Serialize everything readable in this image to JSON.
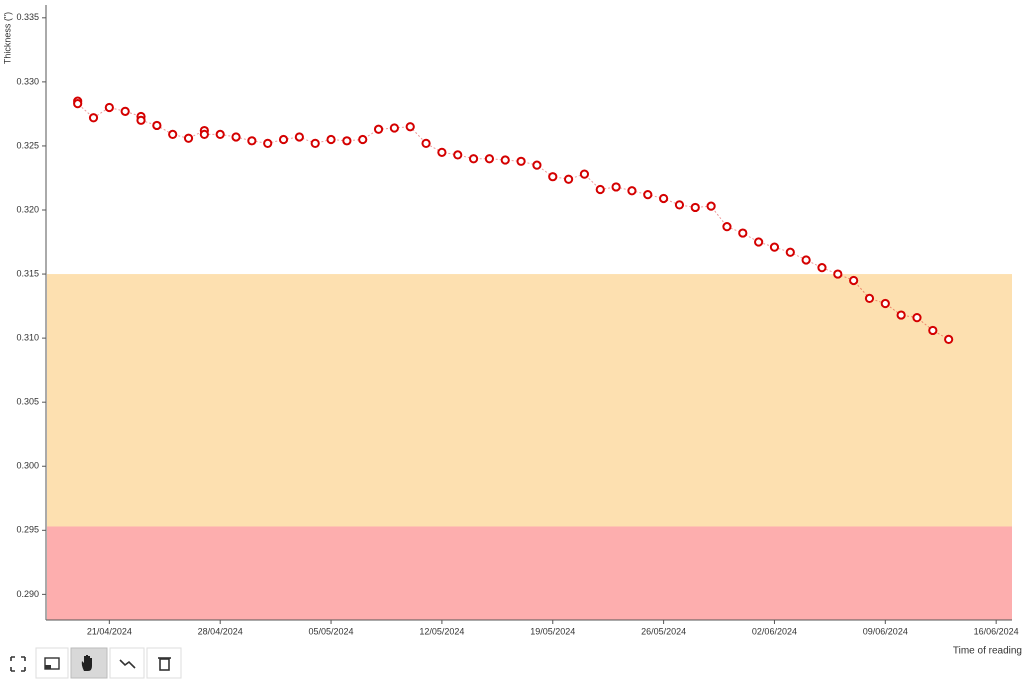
{
  "chart_data": {
    "type": "line",
    "y_label": "Thickness (\")",
    "x_label": "Time of reading",
    "color": "#d40000",
    "x": [
      "2024-04-19",
      "2024-04-19",
      "2024-04-20",
      "2024-04-21",
      "2024-04-22",
      "2024-04-23",
      "2024-04-23",
      "2024-04-24",
      "2024-04-25",
      "2024-04-26",
      "2024-04-27",
      "2024-04-27",
      "2024-04-28",
      "2024-04-29",
      "2024-04-30",
      "2024-05-01",
      "2024-05-02",
      "2024-05-03",
      "2024-05-04",
      "2024-05-05",
      "2024-05-06",
      "2024-05-07",
      "2024-05-08",
      "2024-05-09",
      "2024-05-10",
      "2024-05-11",
      "2024-05-12",
      "2024-05-13",
      "2024-05-14",
      "2024-05-15",
      "2024-05-16",
      "2024-05-17",
      "2024-05-18",
      "2024-05-19",
      "2024-05-20",
      "2024-05-21",
      "2024-05-22",
      "2024-05-23",
      "2024-05-24",
      "2024-05-25",
      "2024-05-26",
      "2024-05-27",
      "2024-05-28",
      "2024-05-29",
      "2024-05-30",
      "2024-05-31",
      "2024-06-01",
      "2024-06-02",
      "2024-06-03",
      "2024-06-04",
      "2024-06-05",
      "2024-06-06",
      "2024-06-07",
      "2024-06-08",
      "2024-06-09",
      "2024-06-10",
      "2024-06-11",
      "2024-06-12",
      "2024-06-13"
    ],
    "values": [
      0.3285,
      0.3283,
      0.3272,
      0.328,
      0.3277,
      0.3273,
      0.327,
      0.3266,
      0.3259,
      0.3256,
      0.3262,
      0.3259,
      0.3259,
      0.3257,
      0.3254,
      0.3252,
      0.3255,
      0.3257,
      0.3252,
      0.3255,
      0.3254,
      0.3255,
      0.3263,
      0.3264,
      0.3265,
      0.3252,
      0.3245,
      0.3243,
      0.324,
      0.324,
      0.3239,
      0.3238,
      0.3235,
      0.3226,
      0.3224,
      0.3228,
      0.3216,
      0.3218,
      0.3215,
      0.3212,
      0.3209,
      0.3204,
      0.3202,
      0.3203,
      0.3187,
      0.3182,
      0.3175,
      0.3171,
      0.3167,
      0.3161,
      0.3155,
      0.315,
      0.3145,
      0.3131,
      0.3127,
      0.3118,
      0.3116,
      0.3106,
      0.3099
    ],
    "bands": [
      {
        "from": 0.2953,
        "to": 0.315,
        "color": "#fde0b0"
      },
      {
        "from": 0.288,
        "to": 0.2953,
        "color": "#fdaeae"
      }
    ],
    "xlim": [
      "2024-04-17",
      "2024-06-17"
    ],
    "ylim": [
      0.288,
      0.336
    ],
    "xticks": [
      {
        "value": "2024-04-21",
        "label": "21/04/2024"
      },
      {
        "value": "2024-04-28",
        "label": "28/04/2024"
      },
      {
        "value": "2024-05-05",
        "label": "05/05/2024"
      },
      {
        "value": "2024-05-12",
        "label": "12/05/2024"
      },
      {
        "value": "2024-05-19",
        "label": "19/05/2024"
      },
      {
        "value": "2024-05-26",
        "label": "26/05/2024"
      },
      {
        "value": "2024-06-02",
        "label": "02/06/2024"
      },
      {
        "value": "2024-06-09",
        "label": "09/06/2024"
      },
      {
        "value": "2024-06-16",
        "label": "16/06/2024"
      }
    ],
    "yticks": [
      {
        "value": 0.29,
        "label": "0.290"
      },
      0.295,
      {
        "value": 0.3,
        "label": "0.300"
      },
      0.305,
      {
        "value": 0.31,
        "label": "0.310"
      },
      0.315,
      {
        "value": 0.32,
        "label": "0.320"
      },
      0.325,
      {
        "value": 0.33,
        "label": "0.330"
      },
      0.335
    ]
  }
}
